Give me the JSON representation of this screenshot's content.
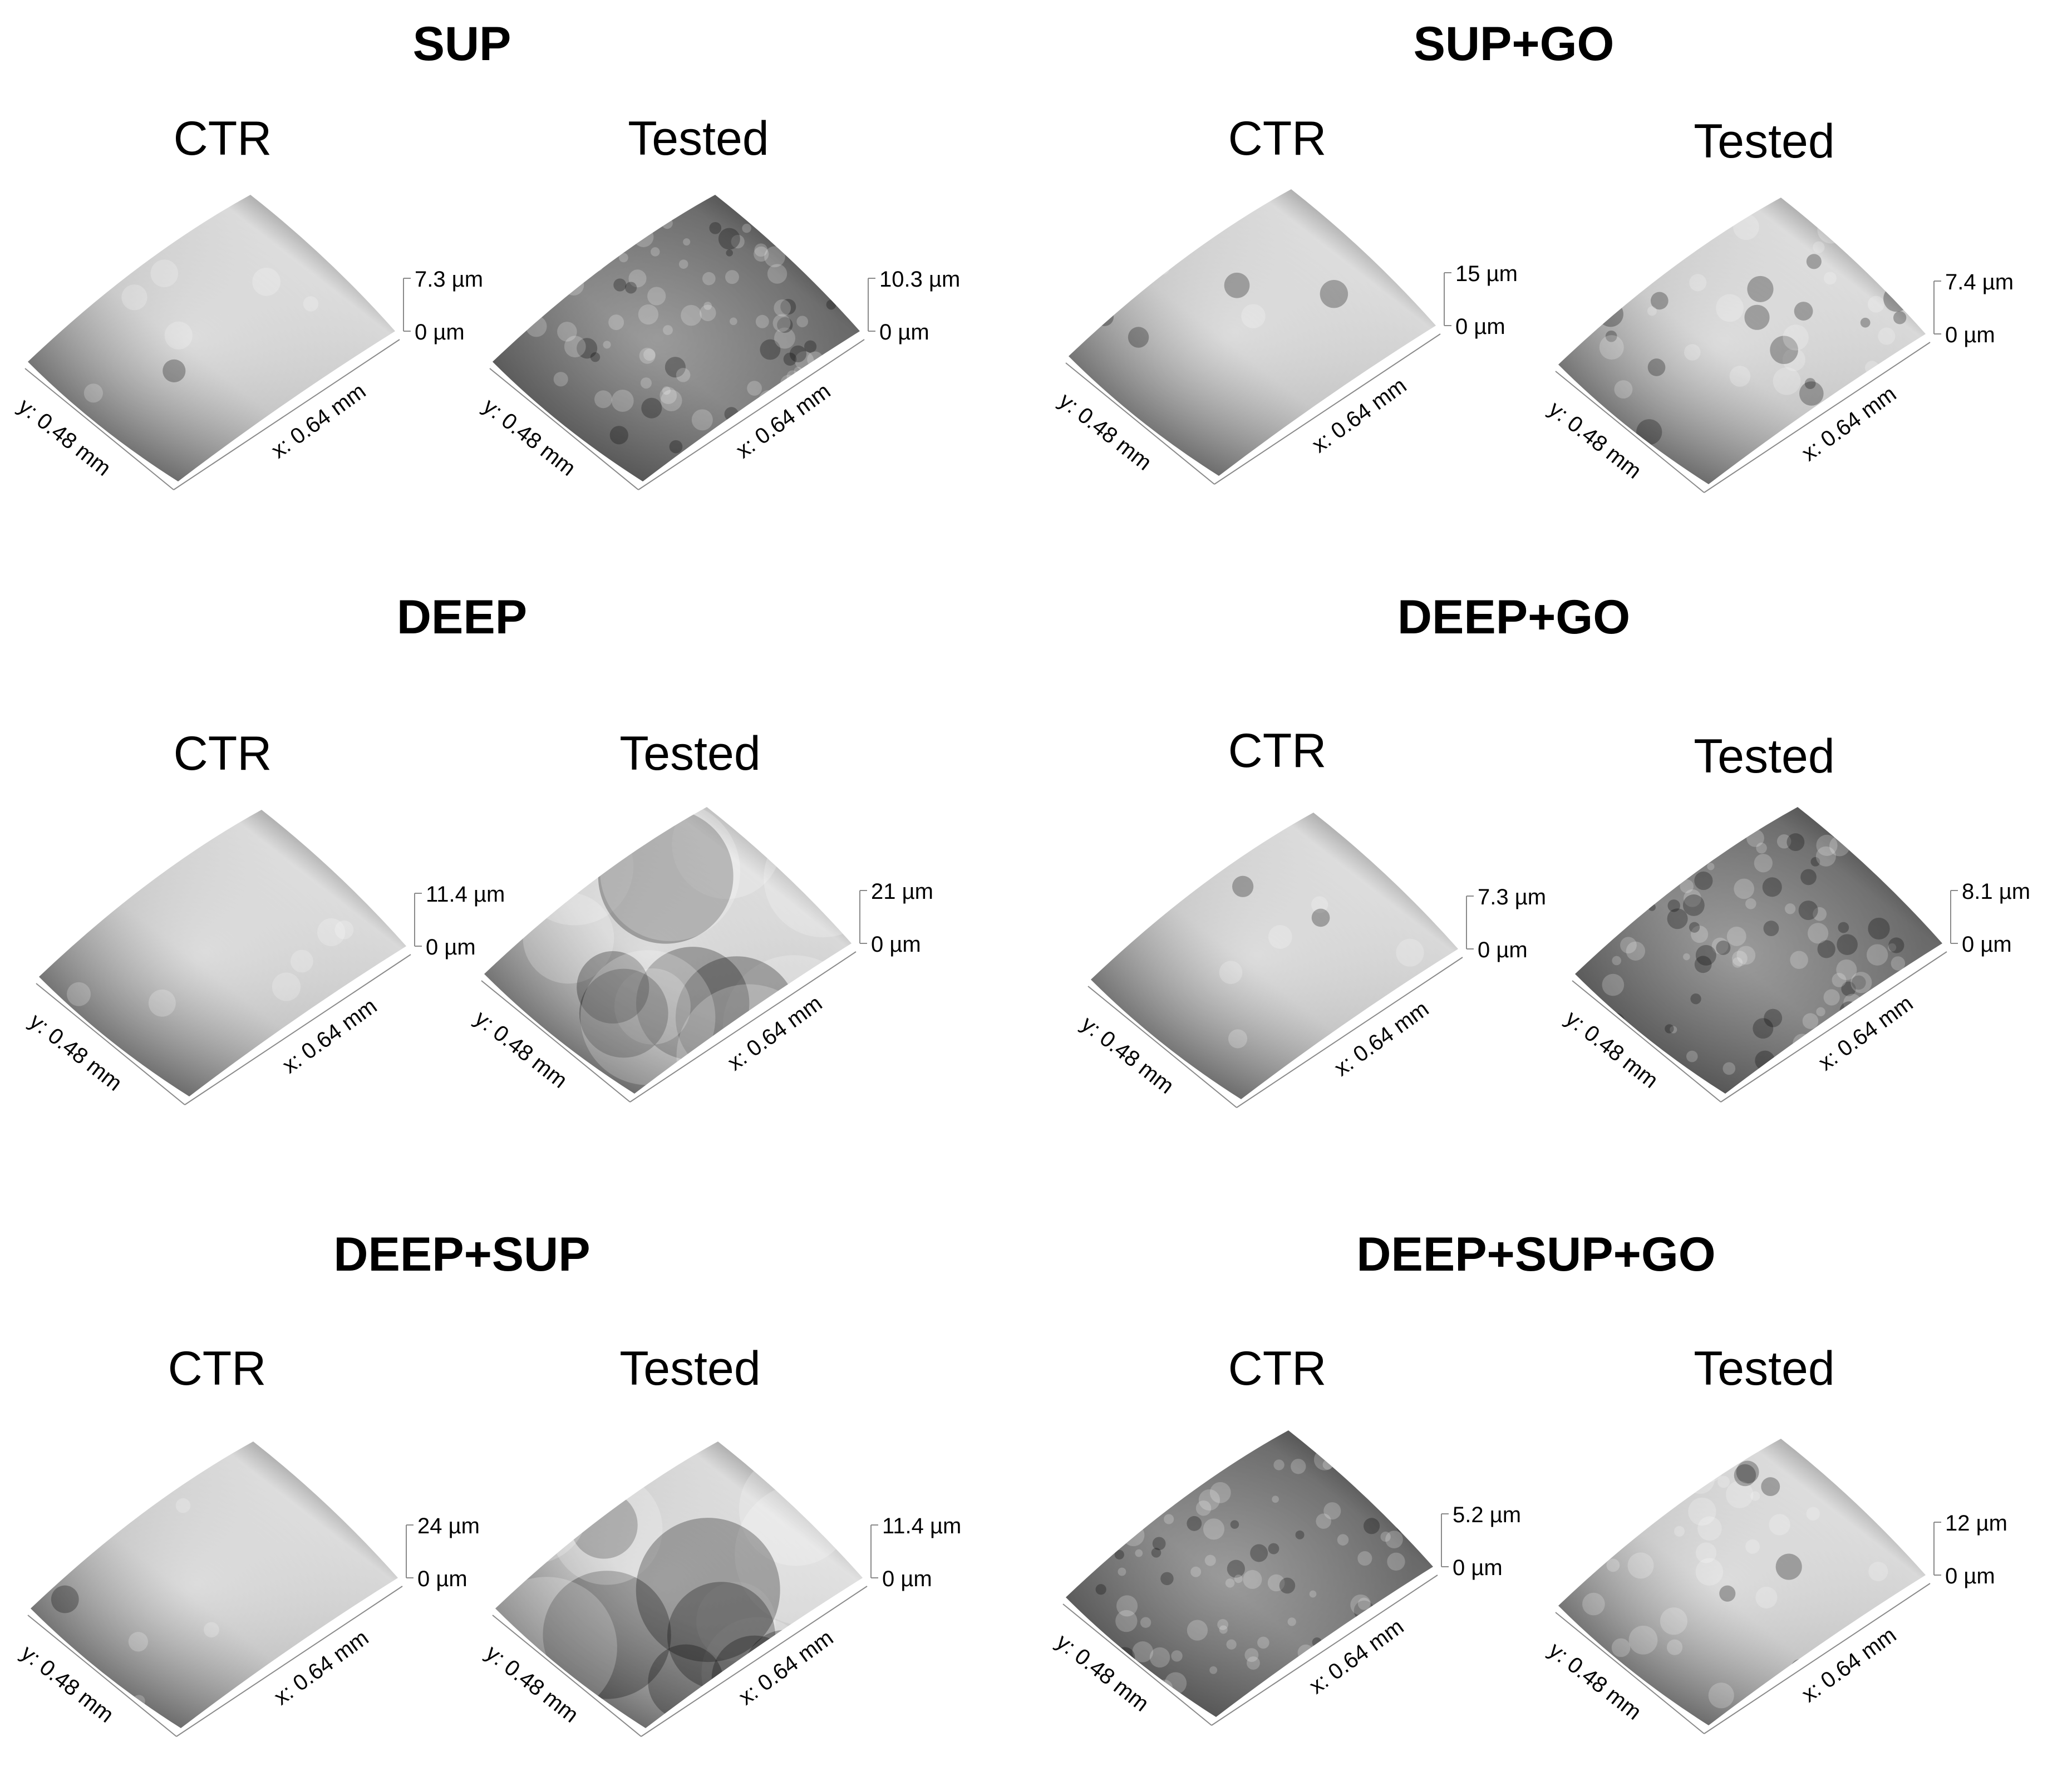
{
  "groups": [
    {
      "title": "SUP",
      "panels": [
        {
          "label": "CTR",
          "z_max": "7.3 µm",
          "z_min": "0 µm",
          "y_axis": "y: 0.48 mm",
          "x_axis": "x: 0.64 mm",
          "texture": "smooth"
        },
        {
          "label": "Tested",
          "z_max": "10.3 µm",
          "z_min": "0 µm",
          "y_axis": "y: 0.48 mm",
          "x_axis": "x: 0.64 mm",
          "texture": "rough"
        }
      ]
    },
    {
      "title": "SUP+GO",
      "panels": [
        {
          "label": "CTR",
          "z_max": "15 µm",
          "z_min": "0 µm",
          "y_axis": "y: 0.48 mm",
          "x_axis": "x: 0.64 mm",
          "texture": "smooth"
        },
        {
          "label": "Tested",
          "z_max": "7.4 µm",
          "z_min": "0 µm",
          "y_axis": "y: 0.48 mm",
          "x_axis": "x: 0.64 mm",
          "texture": "spotted"
        }
      ]
    },
    {
      "title": "DEEP",
      "panels": [
        {
          "label": "CTR",
          "z_max": "11.4 µm",
          "z_min": "0 µm",
          "y_axis": "y: 0.48 mm",
          "x_axis": "x: 0.64 mm",
          "texture": "smooth"
        },
        {
          "label": "Tested",
          "z_max": "21 µm",
          "z_min": "0 µm",
          "y_axis": "y: 0.48 mm",
          "x_axis": "x: 0.64 mm",
          "texture": "wavy"
        }
      ]
    },
    {
      "title": "DEEP+GO",
      "panels": [
        {
          "label": "CTR",
          "z_max": "7.3 µm",
          "z_min": "0 µm",
          "y_axis": "y: 0.48 mm",
          "x_axis": "x: 0.64 mm",
          "texture": "smooth"
        },
        {
          "label": "Tested",
          "z_max": "8.1 µm",
          "z_min": "0 µm",
          "y_axis": "y: 0.48 mm",
          "x_axis": "x: 0.64 mm",
          "texture": "rough"
        }
      ]
    },
    {
      "title": "DEEP+SUP",
      "panels": [
        {
          "label": "CTR",
          "z_max": "24 µm",
          "z_min": "0 µm",
          "y_axis": "y: 0.48 mm",
          "x_axis": "x: 0.64 mm",
          "texture": "smooth"
        },
        {
          "label": "Tested",
          "z_max": "11.4 µm",
          "z_min": "0 µm",
          "y_axis": "y: 0.48 mm",
          "x_axis": "x: 0.64 mm",
          "texture": "wavy"
        }
      ]
    },
    {
      "title": "DEEP+SUP+GO",
      "panels": [
        {
          "label": "CTR",
          "z_max": "5.2 µm",
          "z_min": "0 µm",
          "y_axis": "y: 0.48 mm",
          "x_axis": "x: 0.64 mm",
          "texture": "rough"
        },
        {
          "label": "Tested",
          "z_max": "12 µm",
          "z_min": "0 µm",
          "y_axis": "y: 0.48 mm",
          "x_axis": "x: 0.64 mm",
          "texture": "spotted"
        }
      ]
    }
  ]
}
